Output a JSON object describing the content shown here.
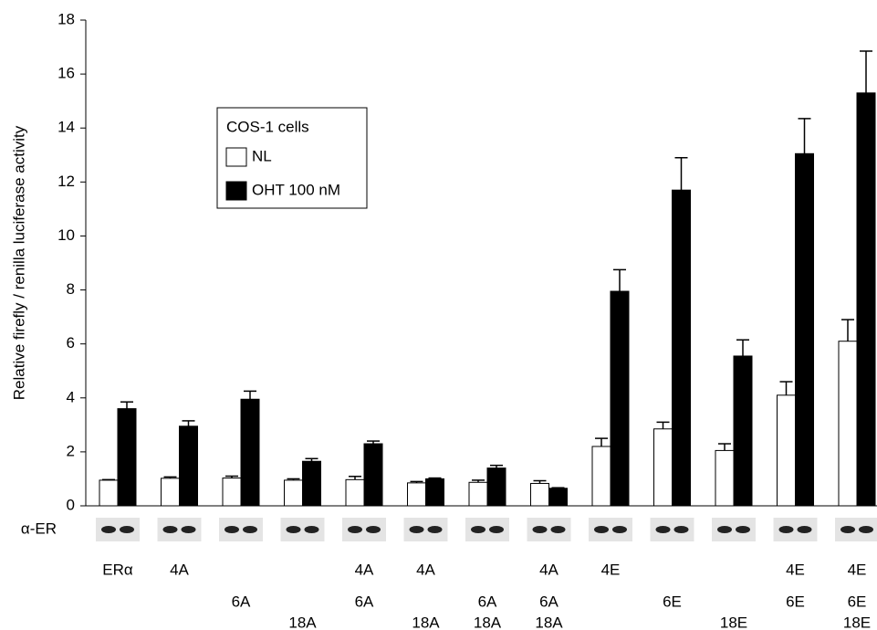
{
  "chart_data": {
    "type": "bar",
    "y_label": "Relative firefly / renilla luciferase activity",
    "ylim": [
      0,
      18
    ],
    "yticks": [
      0,
      2,
      4,
      6,
      8,
      10,
      12,
      14,
      16,
      18
    ],
    "legend_title": "COS-1 cells",
    "blot_label": "α-ER",
    "categories": [
      [
        "ERα",
        null,
        null
      ],
      [
        "4A",
        null,
        null
      ],
      [
        null,
        "6A",
        null
      ],
      [
        null,
        null,
        "18A"
      ],
      [
        "4A",
        "6A",
        null
      ],
      [
        "4A",
        null,
        "18A"
      ],
      [
        null,
        "6A",
        "18A"
      ],
      [
        "4A",
        "6A",
        "18A"
      ],
      [
        "4E",
        null,
        null
      ],
      [
        null,
        "6E",
        null
      ],
      [
        null,
        null,
        "18E"
      ],
      [
        "4E",
        "6E",
        null
      ],
      [
        "4E",
        "6E",
        "18E"
      ]
    ],
    "series": [
      {
        "name": "NL",
        "color": "#ffffff",
        "values": [
          0.95,
          1.02,
          1.03,
          0.95,
          0.97,
          0.85,
          0.87,
          0.83,
          2.2,
          2.85,
          2.05,
          4.1,
          6.1
        ],
        "errors": [
          0.02,
          0.05,
          0.07,
          0.05,
          0.12,
          0.05,
          0.08,
          0.1,
          0.3,
          0.25,
          0.25,
          0.5,
          0.8
        ]
      },
      {
        "name": "OHT 100 nM",
        "color": "#000000",
        "values": [
          3.6,
          2.95,
          3.95,
          1.65,
          2.3,
          1.0,
          1.4,
          0.65,
          7.95,
          11.7,
          5.55,
          13.05,
          15.3
        ],
        "errors": [
          0.25,
          0.2,
          0.3,
          0.1,
          0.1,
          0.03,
          0.1,
          0.02,
          0.8,
          1.2,
          0.6,
          1.3,
          1.55
        ]
      }
    ]
  }
}
